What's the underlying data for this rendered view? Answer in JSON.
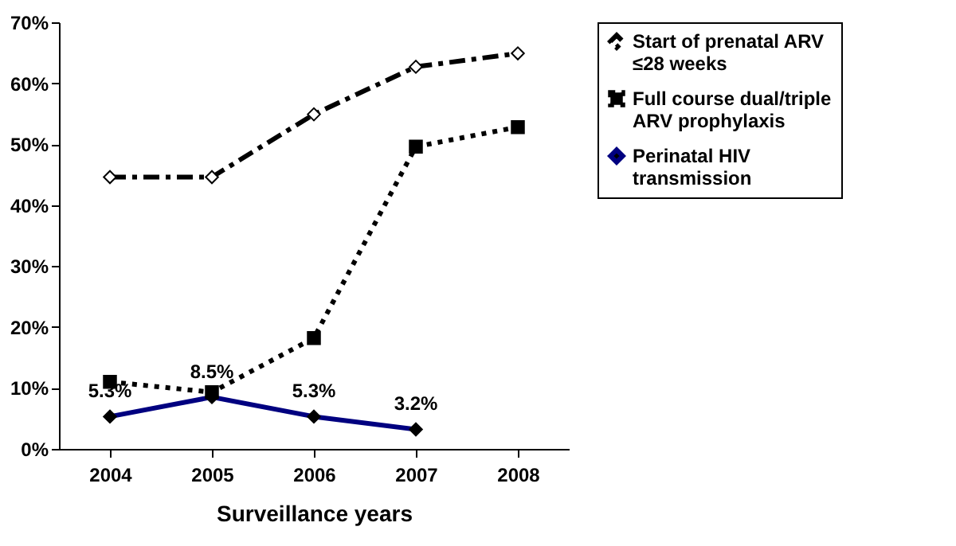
{
  "chart_data": {
    "type": "line",
    "xlabel": "Surveillance years",
    "categories": [
      "2004",
      "2005",
      "2006",
      "2007",
      "2008"
    ],
    "series": [
      {
        "name": "Start of prenatal ARV ≤28 weeks",
        "color": "#000000",
        "line_style": "dashed",
        "marker": "diamond",
        "values": [
          44.6,
          44.6,
          54.9,
          62.7,
          64.9
        ]
      },
      {
        "name": "Full course dual/triple ARV prophylaxis",
        "color": "#000000",
        "line_style": "dotted",
        "marker": "square",
        "values": [
          11,
          9.3,
          18.2,
          49.6,
          52.8
        ]
      },
      {
        "name": "Perinatal HIV transmission",
        "color": "#000080",
        "line_style": "solid",
        "marker": "diamond",
        "values": [
          5.3,
          8.5,
          5.3,
          3.2,
          null
        ],
        "value_labels": [
          "5.3%",
          "8.5%",
          "5.3%",
          "3.2%",
          null
        ]
      }
    ],
    "ylim": [
      0,
      70
    ],
    "yticks": [
      {
        "value": 0,
        "label": "0%"
      },
      {
        "value": 10,
        "label": "10%"
      },
      {
        "value": 20,
        "label": "20%"
      },
      {
        "value": 30,
        "label": "30%"
      },
      {
        "value": 40,
        "label": "40%"
      },
      {
        "value": 50,
        "label": "50%"
      },
      {
        "value": 60,
        "label": "60%"
      },
      {
        "value": 70,
        "label": "70%"
      }
    ],
    "grid": false,
    "legend": "right"
  }
}
